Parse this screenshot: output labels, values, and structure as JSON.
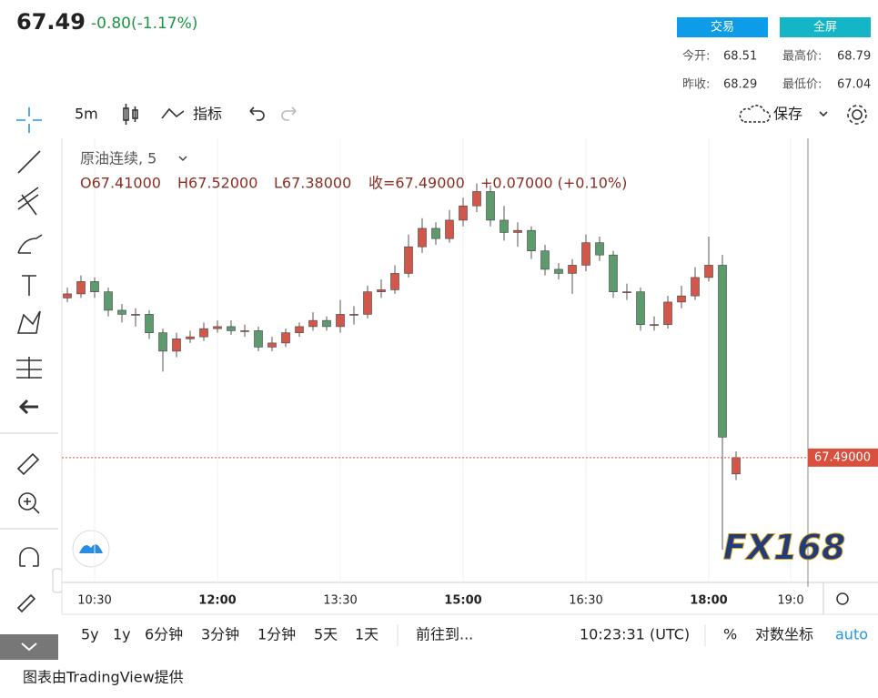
{
  "header": {
    "price": "67.49",
    "change": "-0.80(-1.17%)",
    "buttons": [
      "交易",
      "全屏"
    ],
    "stats": [
      {
        "label": "今开:",
        "value": "68.51"
      },
      {
        "label": "最高价:",
        "value": "68.79"
      },
      {
        "label": "昨收:",
        "value": "68.29"
      },
      {
        "label": "最低价:",
        "value": "67.04"
      }
    ]
  },
  "toolbar": {
    "interval": "5m",
    "indicators": "指标",
    "save": "保存"
  },
  "chart_data": {
    "type": "candlestick",
    "title": "原油连续, 5",
    "legend": [
      "O67.41000",
      "H67.52000",
      "L67.38000",
      "收=67.49000",
      "+0.07000 (+0.10%)"
    ],
    "x": [
      "10:10",
      "10:20",
      "10:30",
      "10:40",
      "10:50",
      "11:00",
      "11:10",
      "11:20",
      "11:30",
      "11:40",
      "11:50",
      "12:00",
      "12:10",
      "12:20",
      "12:30",
      "12:40",
      "12:50",
      "13:00",
      "13:10",
      "13:20",
      "13:30",
      "13:40",
      "13:50",
      "14:00",
      "14:10",
      "14:20",
      "14:30",
      "14:40",
      "14:50",
      "15:00",
      "15:10",
      "15:20",
      "15:30",
      "15:40",
      "15:50",
      "16:00",
      "16:10",
      "16:20",
      "16:30",
      "16:40",
      "16:50",
      "17:00",
      "17:10",
      "17:20",
      "17:30",
      "17:40",
      "17:50",
      "18:00",
      "18:10",
      "18:20"
    ],
    "open": [
      68.27,
      68.29,
      68.35,
      68.3,
      68.21,
      68.19,
      68.19,
      68.1,
      68.01,
      68.07,
      68.08,
      68.12,
      68.13,
      68.11,
      68.11,
      68.03,
      68.05,
      68.1,
      68.13,
      68.16,
      68.13,
      68.19,
      68.19,
      68.3,
      68.31,
      68.39,
      68.52,
      68.61,
      68.56,
      68.65,
      68.72,
      68.79,
      68.65,
      68.59,
      68.6,
      68.5,
      68.41,
      68.39,
      68.43,
      68.54,
      68.48,
      68.3,
      68.3,
      68.14,
      68.14,
      68.25,
      68.28,
      68.37,
      68.43,
      67.41
    ],
    "high": [
      68.32,
      68.38,
      68.37,
      68.32,
      68.24,
      68.22,
      68.21,
      68.12,
      68.1,
      68.11,
      68.15,
      68.16,
      68.16,
      68.14,
      68.13,
      68.08,
      68.12,
      68.15,
      68.2,
      68.18,
      68.26,
      68.23,
      68.33,
      68.36,
      68.43,
      68.58,
      68.66,
      68.64,
      68.7,
      68.76,
      68.83,
      68.82,
      68.72,
      68.64,
      68.62,
      68.53,
      68.44,
      68.46,
      68.58,
      68.57,
      68.5,
      68.34,
      68.32,
      68.18,
      68.28,
      68.33,
      68.42,
      68.57,
      68.48,
      67.52
    ],
    "low": [
      68.25,
      68.27,
      68.27,
      68.18,
      68.15,
      68.13,
      68.07,
      67.91,
      67.98,
      68.05,
      68.06,
      68.1,
      68.09,
      68.08,
      68.01,
      68.01,
      68.03,
      68.08,
      68.11,
      68.11,
      68.1,
      68.14,
      68.17,
      68.27,
      68.29,
      68.37,
      68.49,
      68.53,
      68.54,
      68.62,
      68.69,
      68.62,
      68.55,
      68.52,
      68.46,
      68.38,
      68.36,
      68.29,
      68.4,
      68.45,
      68.27,
      68.26,
      68.11,
      68.11,
      68.12,
      68.22,
      68.26,
      68.35,
      67.04,
      67.38
    ],
    "close": [
      68.29,
      68.35,
      68.3,
      68.21,
      68.19,
      68.19,
      68.1,
      68.01,
      68.07,
      68.08,
      68.12,
      68.13,
      68.11,
      68.11,
      68.03,
      68.05,
      68.1,
      68.13,
      68.16,
      68.13,
      68.19,
      68.19,
      68.3,
      68.31,
      68.39,
      68.52,
      68.61,
      68.56,
      68.65,
      68.72,
      68.79,
      68.65,
      68.59,
      68.6,
      68.5,
      68.41,
      68.39,
      68.43,
      68.54,
      68.48,
      68.3,
      68.3,
      68.14,
      68.14,
      68.25,
      68.28,
      68.37,
      68.43,
      67.59,
      67.49
    ],
    "up_color": "#d2574b",
    "down_color": "#5d9a6d",
    "ylim": [
      66.88,
      69.05
    ],
    "xticks": [
      "10:30",
      "12:00",
      "13:30",
      "15:00",
      "16:30",
      "18:00",
      "19:0"
    ],
    "last_price": 67.49,
    "last_price_label": "67.49000",
    "watermark": "FX168"
  },
  "bottom_bar": {
    "ranges": [
      "5y",
      "1y",
      "6分钟",
      "3分钟",
      "1分钟",
      "5天",
      "1天"
    ],
    "goto": "前往到...",
    "time": "10:23:31 (UTC)",
    "percent": "%",
    "log": "对数坐标",
    "auto": "auto"
  },
  "footer": "图表由TradingView提供"
}
